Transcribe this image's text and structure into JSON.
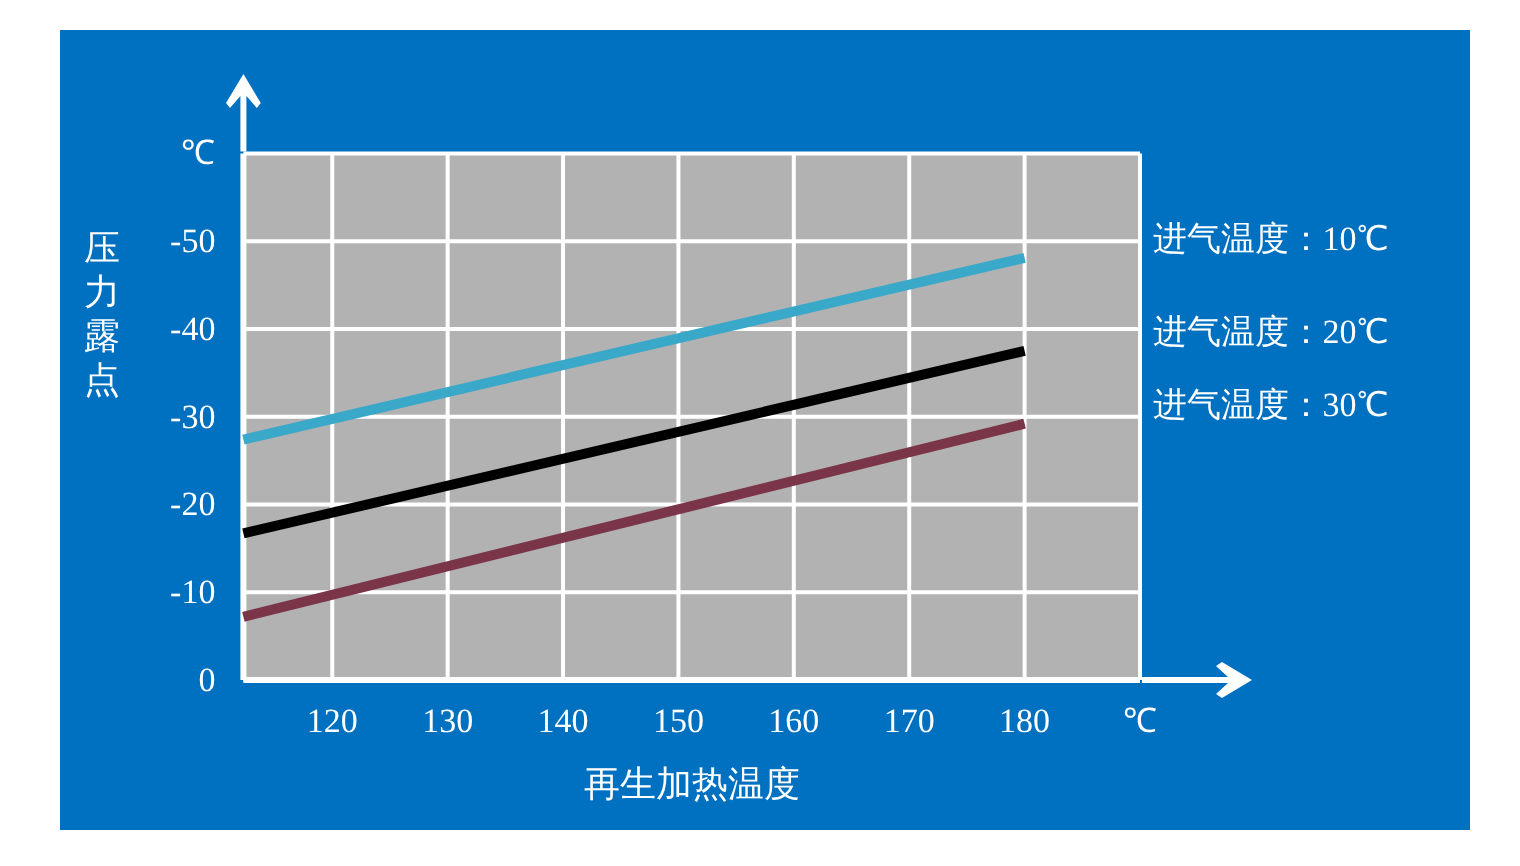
{
  "chart_data": {
    "type": "line",
    "xlabel": "再生加热温度",
    "ylabel": "压力露点",
    "xlim": [
      112.3,
      190
    ],
    "ylim": [
      0,
      -60
    ],
    "xticks": [
      120,
      130,
      140,
      150,
      160,
      170,
      180,
      {
        "value": 190,
        "label": "℃"
      }
    ],
    "yticks": [
      0,
      -10,
      -20,
      -30,
      -40,
      -50,
      {
        "value": -60,
        "label": "℃"
      }
    ],
    "grid": true,
    "x": [
      112.3,
      180
    ],
    "series": [
      {
        "name": "进气温度：10℃",
        "color": "#3aa8c8",
        "values": [
          -27.4,
          -48.1
        ]
      },
      {
        "name": "进气温度：20℃",
        "color": "#000000",
        "values": [
          -16.7,
          -37.5
        ]
      },
      {
        "name": "进气温度：30℃",
        "color": "#7a3548",
        "values": [
          -7.2,
          -29.2
        ]
      }
    ]
  }
}
